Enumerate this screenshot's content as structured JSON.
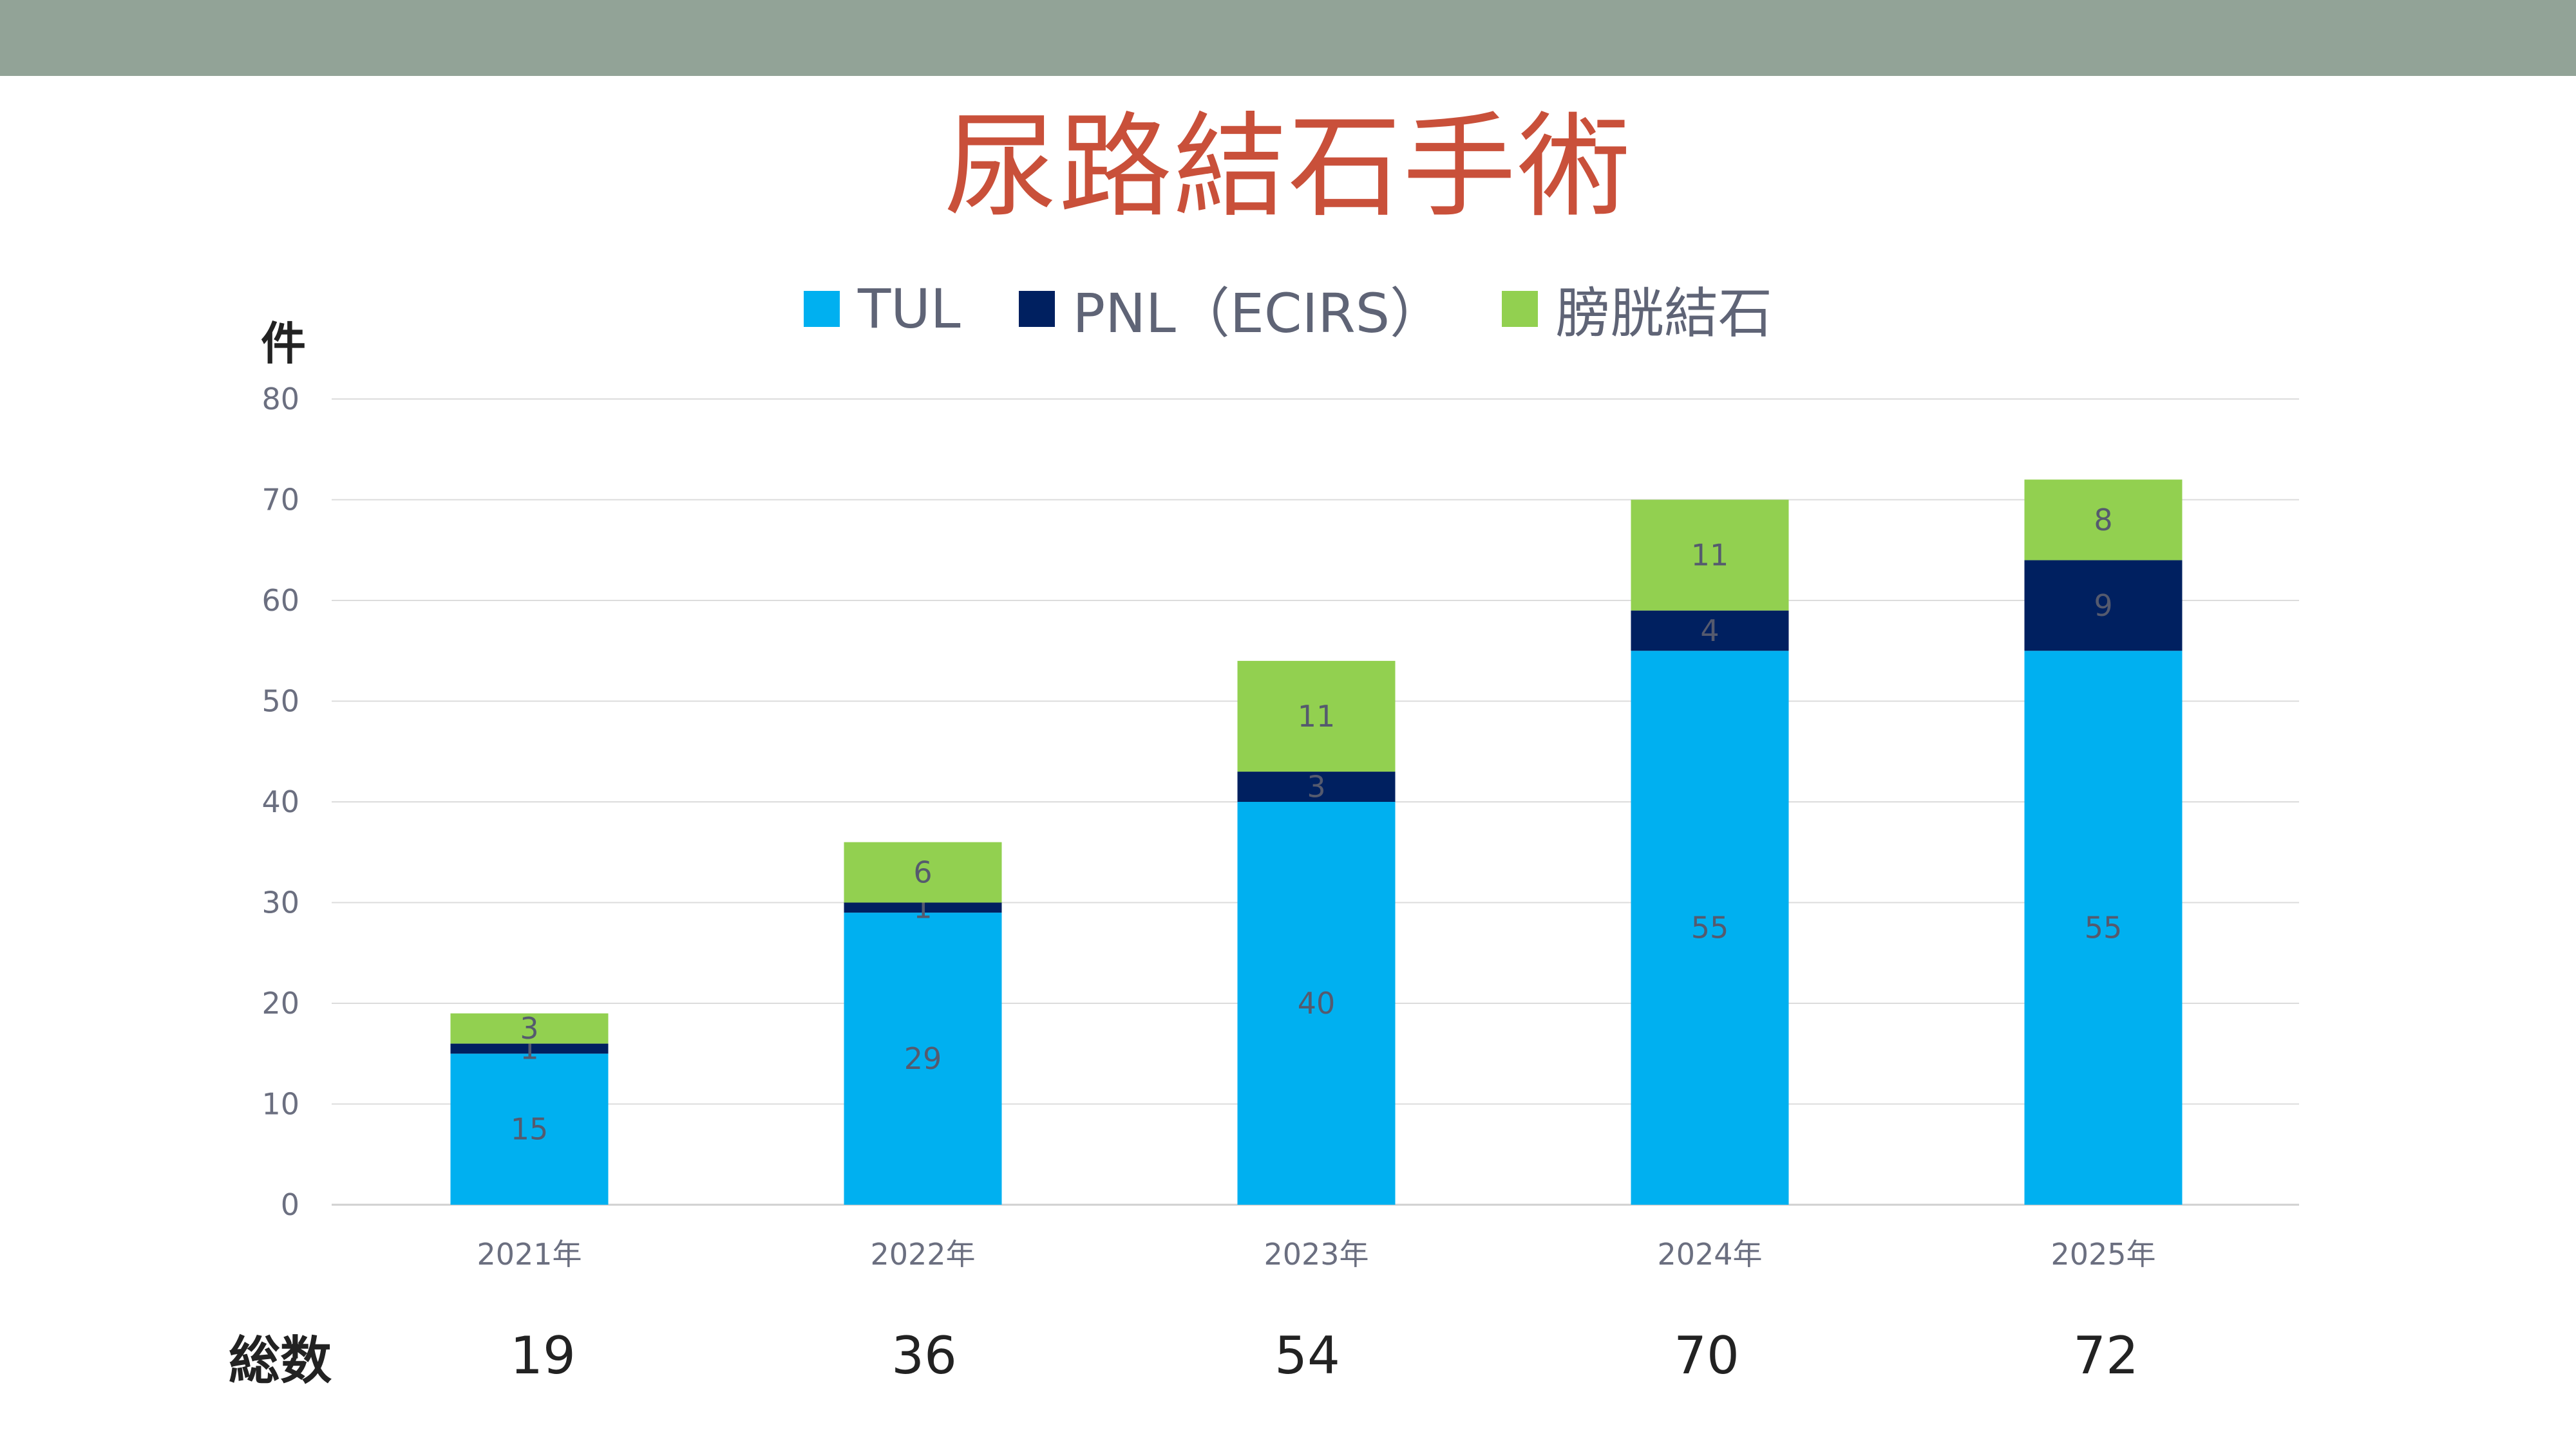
{
  "title": "尿路結石手術",
  "unit_label": "件",
  "totals_label": "総数",
  "totals": [
    "19",
    "36",
    "54",
    "70",
    "72"
  ],
  "colors": {
    "tul": "#00b0f0",
    "pnl": "#002060",
    "bladder": "#92d050",
    "title": "#c9503a"
  },
  "chart_data": {
    "type": "bar",
    "stacked": true,
    "categories": [
      "2021年",
      "2022年",
      "2023年",
      "2024年",
      "2025年"
    ],
    "series": [
      {
        "name": "TUL",
        "values": [
          15,
          29,
          40,
          55,
          55
        ],
        "color": "#00b0f0"
      },
      {
        "name": "PNL（ECIRS）",
        "values": [
          1,
          1,
          3,
          4,
          9
        ],
        "color": "#002060"
      },
      {
        "name": "膀胱結石",
        "values": [
          3,
          6,
          11,
          11,
          8
        ],
        "color": "#92d050"
      }
    ],
    "ylim": [
      0,
      80
    ],
    "yticks": [
      0,
      10,
      20,
      30,
      40,
      50,
      60,
      70,
      80
    ],
    "ytick_labels": [
      "0",
      "10",
      "20",
      "30",
      "40",
      "50",
      "60",
      "70",
      "80"
    ],
    "grid": true,
    "legend": "top"
  }
}
